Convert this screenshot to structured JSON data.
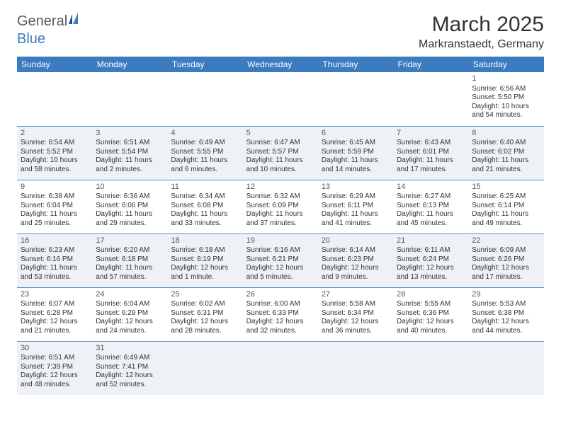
{
  "logo": {
    "general": "General",
    "blue": "Blue"
  },
  "title": "March 2025",
  "location": "Markranstaedt, Germany",
  "colors": {
    "header_bg": "#3b7bbf",
    "header_text": "#ffffff",
    "cell_border": "#5b8fc4",
    "shaded_bg": "#eef1f5",
    "text": "#333333"
  },
  "weekdays": [
    "Sunday",
    "Monday",
    "Tuesday",
    "Wednesday",
    "Thursday",
    "Friday",
    "Saturday"
  ],
  "leading_blanks": 6,
  "days": [
    {
      "n": 1,
      "sr": "6:56 AM",
      "ss": "5:50 PM",
      "dl": "10 hours and 54 minutes."
    },
    {
      "n": 2,
      "sr": "6:54 AM",
      "ss": "5:52 PM",
      "dl": "10 hours and 58 minutes."
    },
    {
      "n": 3,
      "sr": "6:51 AM",
      "ss": "5:54 PM",
      "dl": "11 hours and 2 minutes."
    },
    {
      "n": 4,
      "sr": "6:49 AM",
      "ss": "5:55 PM",
      "dl": "11 hours and 6 minutes."
    },
    {
      "n": 5,
      "sr": "6:47 AM",
      "ss": "5:57 PM",
      "dl": "11 hours and 10 minutes."
    },
    {
      "n": 6,
      "sr": "6:45 AM",
      "ss": "5:59 PM",
      "dl": "11 hours and 14 minutes."
    },
    {
      "n": 7,
      "sr": "6:43 AM",
      "ss": "6:01 PM",
      "dl": "11 hours and 17 minutes."
    },
    {
      "n": 8,
      "sr": "6:40 AM",
      "ss": "6:02 PM",
      "dl": "11 hours and 21 minutes."
    },
    {
      "n": 9,
      "sr": "6:38 AM",
      "ss": "6:04 PM",
      "dl": "11 hours and 25 minutes."
    },
    {
      "n": 10,
      "sr": "6:36 AM",
      "ss": "6:06 PM",
      "dl": "11 hours and 29 minutes."
    },
    {
      "n": 11,
      "sr": "6:34 AM",
      "ss": "6:08 PM",
      "dl": "11 hours and 33 minutes."
    },
    {
      "n": 12,
      "sr": "6:32 AM",
      "ss": "6:09 PM",
      "dl": "11 hours and 37 minutes."
    },
    {
      "n": 13,
      "sr": "6:29 AM",
      "ss": "6:11 PM",
      "dl": "11 hours and 41 minutes."
    },
    {
      "n": 14,
      "sr": "6:27 AM",
      "ss": "6:13 PM",
      "dl": "11 hours and 45 minutes."
    },
    {
      "n": 15,
      "sr": "6:25 AM",
      "ss": "6:14 PM",
      "dl": "11 hours and 49 minutes."
    },
    {
      "n": 16,
      "sr": "6:23 AM",
      "ss": "6:16 PM",
      "dl": "11 hours and 53 minutes."
    },
    {
      "n": 17,
      "sr": "6:20 AM",
      "ss": "6:18 PM",
      "dl": "11 hours and 57 minutes."
    },
    {
      "n": 18,
      "sr": "6:18 AM",
      "ss": "6:19 PM",
      "dl": "12 hours and 1 minute."
    },
    {
      "n": 19,
      "sr": "6:16 AM",
      "ss": "6:21 PM",
      "dl": "12 hours and 5 minutes."
    },
    {
      "n": 20,
      "sr": "6:14 AM",
      "ss": "6:23 PM",
      "dl": "12 hours and 9 minutes."
    },
    {
      "n": 21,
      "sr": "6:11 AM",
      "ss": "6:24 PM",
      "dl": "12 hours and 13 minutes."
    },
    {
      "n": 22,
      "sr": "6:09 AM",
      "ss": "6:26 PM",
      "dl": "12 hours and 17 minutes."
    },
    {
      "n": 23,
      "sr": "6:07 AM",
      "ss": "6:28 PM",
      "dl": "12 hours and 21 minutes."
    },
    {
      "n": 24,
      "sr": "6:04 AM",
      "ss": "6:29 PM",
      "dl": "12 hours and 24 minutes."
    },
    {
      "n": 25,
      "sr": "6:02 AM",
      "ss": "6:31 PM",
      "dl": "12 hours and 28 minutes."
    },
    {
      "n": 26,
      "sr": "6:00 AM",
      "ss": "6:33 PM",
      "dl": "12 hours and 32 minutes."
    },
    {
      "n": 27,
      "sr": "5:58 AM",
      "ss": "6:34 PM",
      "dl": "12 hours and 36 minutes."
    },
    {
      "n": 28,
      "sr": "5:55 AM",
      "ss": "6:36 PM",
      "dl": "12 hours and 40 minutes."
    },
    {
      "n": 29,
      "sr": "5:53 AM",
      "ss": "6:38 PM",
      "dl": "12 hours and 44 minutes."
    },
    {
      "n": 30,
      "sr": "6:51 AM",
      "ss": "7:39 PM",
      "dl": "12 hours and 48 minutes."
    },
    {
      "n": 31,
      "sr": "6:49 AM",
      "ss": "7:41 PM",
      "dl": "12 hours and 52 minutes."
    }
  ],
  "labels": {
    "sunrise": "Sunrise:",
    "sunset": "Sunset:",
    "daylight": "Daylight:"
  }
}
